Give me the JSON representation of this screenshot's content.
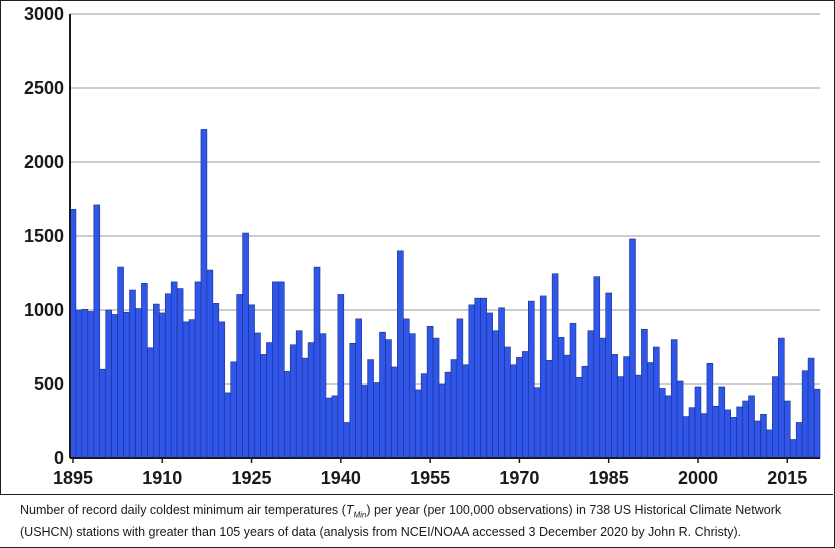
{
  "chart_data": {
    "type": "bar",
    "title": "",
    "xlabel": "",
    "ylabel": "",
    "ylim": [
      0,
      3000
    ],
    "yticks": [
      0,
      500,
      1000,
      1500,
      2000,
      2500,
      3000
    ],
    "xtick_labels": [
      "1895",
      "1910",
      "1925",
      "1940",
      "1955",
      "1970",
      "1985",
      "2000",
      "2015"
    ],
    "grid": "horizontal",
    "bar_color": "#2f56e8",
    "bar_edge_color": "#1b2f8a",
    "x": [
      1895,
      1896,
      1897,
      1898,
      1899,
      1900,
      1901,
      1902,
      1903,
      1904,
      1905,
      1906,
      1907,
      1908,
      1909,
      1910,
      1911,
      1912,
      1913,
      1914,
      1915,
      1916,
      1917,
      1918,
      1919,
      1920,
      1921,
      1922,
      1923,
      1924,
      1925,
      1926,
      1927,
      1928,
      1929,
      1930,
      1931,
      1932,
      1933,
      1934,
      1935,
      1936,
      1937,
      1938,
      1939,
      1940,
      1941,
      1942,
      1943,
      1944,
      1945,
      1946,
      1947,
      1948,
      1949,
      1950,
      1951,
      1952,
      1953,
      1954,
      1955,
      1956,
      1957,
      1958,
      1959,
      1960,
      1961,
      1962,
      1963,
      1964,
      1965,
      1966,
      1967,
      1968,
      1969,
      1970,
      1971,
      1972,
      1973,
      1974,
      1975,
      1976,
      1977,
      1978,
      1979,
      1980,
      1981,
      1982,
      1983,
      1984,
      1985,
      1986,
      1987,
      1988,
      1989,
      1990,
      1991,
      1992,
      1993,
      1994,
      1995,
      1996,
      1997,
      1998,
      1999,
      2000,
      2001,
      2002,
      2003,
      2004,
      2005,
      2006,
      2007,
      2008,
      2009,
      2010,
      2011,
      2012,
      2013,
      2014,
      2015,
      2016,
      2017,
      2018,
      2019,
      2020
    ],
    "values": [
      1680,
      1000,
      1005,
      990,
      1710,
      600,
      1000,
      970,
      1290,
      985,
      1135,
      1010,
      1180,
      745,
      1040,
      980,
      1110,
      1190,
      1145,
      920,
      935,
      1190,
      2220,
      1270,
      1045,
      920,
      440,
      650,
      1105,
      1520,
      1035,
      845,
      700,
      780,
      1190,
      1190,
      585,
      765,
      860,
      675,
      780,
      1290,
      840,
      405,
      420,
      1105,
      240,
      775,
      940,
      490,
      665,
      510,
      850,
      800,
      615,
      1400,
      940,
      840,
      460,
      570,
      890,
      810,
      500,
      580,
      665,
      940,
      630,
      1035,
      1080,
      1080,
      980,
      860,
      1015,
      750,
      630,
      680,
      720,
      1060,
      475,
      1095,
      660,
      1245,
      815,
      695,
      910,
      545,
      620,
      860,
      1225,
      810,
      1115,
      700,
      550,
      685,
      1480,
      560,
      870,
      645,
      750,
      470,
      420,
      800,
      520,
      280,
      340,
      480,
      300,
      640,
      350,
      480,
      325,
      275,
      345,
      385,
      420,
      250,
      295,
      190,
      550,
      810,
      385,
      125,
      240,
      590,
      675,
      465
    ]
  },
  "caption": {
    "before_symbol": "Number of record daily coldest minimum air temperatures (",
    "symbol": "T",
    "symbol_subscript": "Min",
    "after_symbol": ") per year (per 100,000 observations) in 738 US Historical Climate Network (USHCN) stations with greater than 105 years of data (analysis from NCEI/NOAA accessed 3 December 2020 by John R. Christy)."
  }
}
